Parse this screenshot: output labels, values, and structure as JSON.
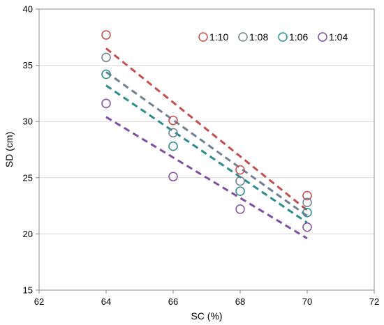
{
  "chart_data": {
    "type": "scatter",
    "xlabel": "SC (%)",
    "ylabel": "SD (cm)",
    "xlim": [
      62,
      72
    ],
    "ylim": [
      15,
      40
    ],
    "xticks": [
      62,
      64,
      66,
      68,
      70,
      72
    ],
    "yticks": [
      15,
      20,
      25,
      30,
      35,
      40
    ],
    "grid": "horizontal",
    "legend_position": "top-right",
    "series": [
      {
        "name": "1:10",
        "color": "#c0504d",
        "points": [
          [
            64,
            37.7
          ],
          [
            66,
            30.1
          ],
          [
            68,
            25.7
          ],
          [
            70,
            23.4
          ]
        ],
        "trendline": [
          [
            64,
            36.5
          ],
          [
            70,
            22.1
          ]
        ]
      },
      {
        "name": "1:08",
        "color": "#708090",
        "points": [
          [
            64,
            35.7
          ],
          [
            66,
            29.0
          ],
          [
            68,
            24.7
          ],
          [
            70,
            22.8
          ]
        ],
        "trendline": [
          [
            64,
            34.4
          ],
          [
            70,
            21.6
          ]
        ]
      },
      {
        "name": "1:06",
        "color": "#2e8b8b",
        "points": [
          [
            64,
            34.2
          ],
          [
            66,
            27.8
          ],
          [
            68,
            23.8
          ],
          [
            70,
            21.9
          ]
        ],
        "trendline": [
          [
            64,
            33.2
          ],
          [
            70,
            21.0
          ]
        ]
      },
      {
        "name": "1:04",
        "color": "#7f4fa0",
        "points": [
          [
            64,
            31.6
          ],
          [
            66,
            25.1
          ],
          [
            68,
            22.2
          ],
          [
            70,
            20.6
          ]
        ],
        "trendline": [
          [
            64,
            30.4
          ],
          [
            70,
            19.6
          ]
        ]
      }
    ]
  }
}
